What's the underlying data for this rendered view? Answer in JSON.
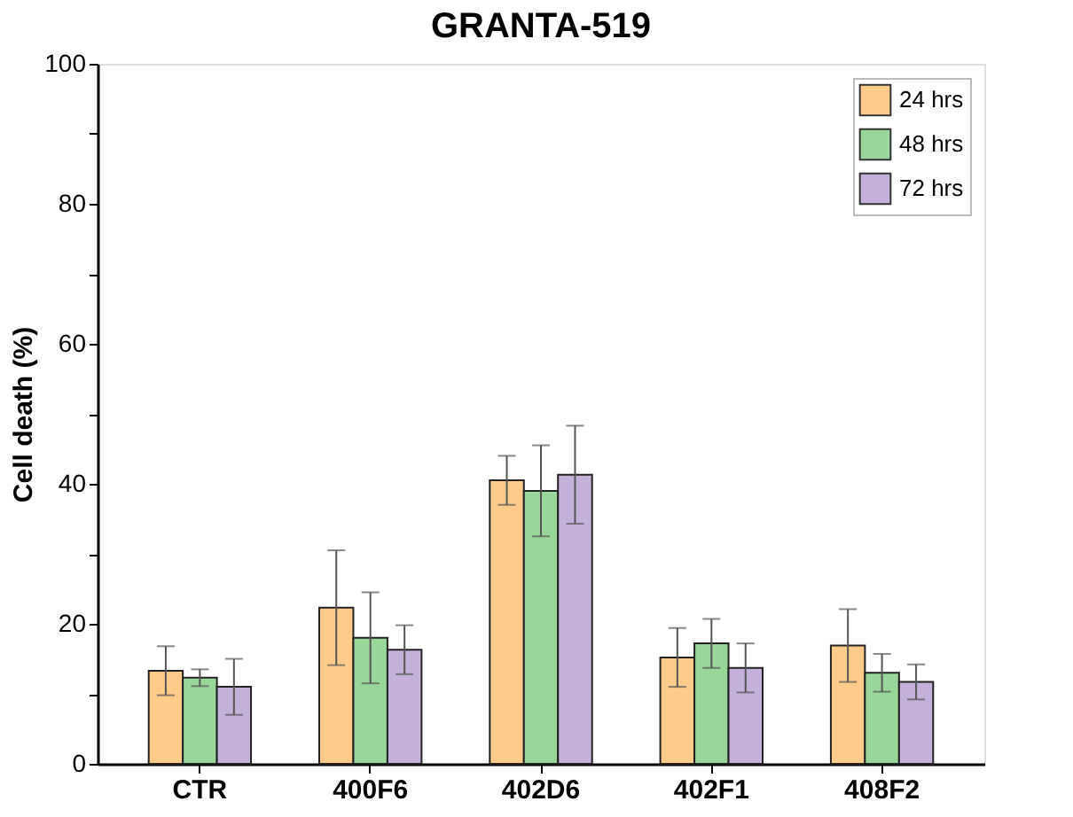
{
  "chart_data": {
    "type": "bar",
    "title": "GRANTA-519",
    "ylabel": "Cell death (%)",
    "categories": [
      "CTR",
      "400F6",
      "402D6",
      "402F1",
      "408F2"
    ],
    "series": [
      {
        "name": "24 hrs",
        "color": "#fecb8b",
        "values": [
          13.3,
          22.3,
          40.5,
          15.2,
          16.9
        ],
        "errors": [
          3.5,
          8.2,
          3.5,
          4.2,
          5.2
        ]
      },
      {
        "name": "48 hrs",
        "color": "#99d699",
        "values": [
          12.3,
          18,
          39,
          17.2,
          13
        ],
        "errors": [
          1.2,
          6.5,
          6.5,
          3.5,
          2.7
        ]
      },
      {
        "name": "72 hrs",
        "color": "#c3b1d9",
        "values": [
          11,
          16.3,
          41.3,
          13.7,
          11.7
        ],
        "errors": [
          4,
          3.5,
          7,
          3.5,
          2.5
        ]
      }
    ],
    "ylim": [
      0,
      100
    ],
    "yticks": [
      0,
      {
        "value": 10,
        "label": null
      },
      20,
      {
        "value": 30,
        "label": null
      },
      40,
      {
        "value": 50,
        "label": null
      },
      60,
      {
        "value": 70,
        "label": null
      },
      80,
      {
        "value": 90,
        "label": null
      },
      100
    ],
    "grid": false,
    "legend": "top right"
  }
}
